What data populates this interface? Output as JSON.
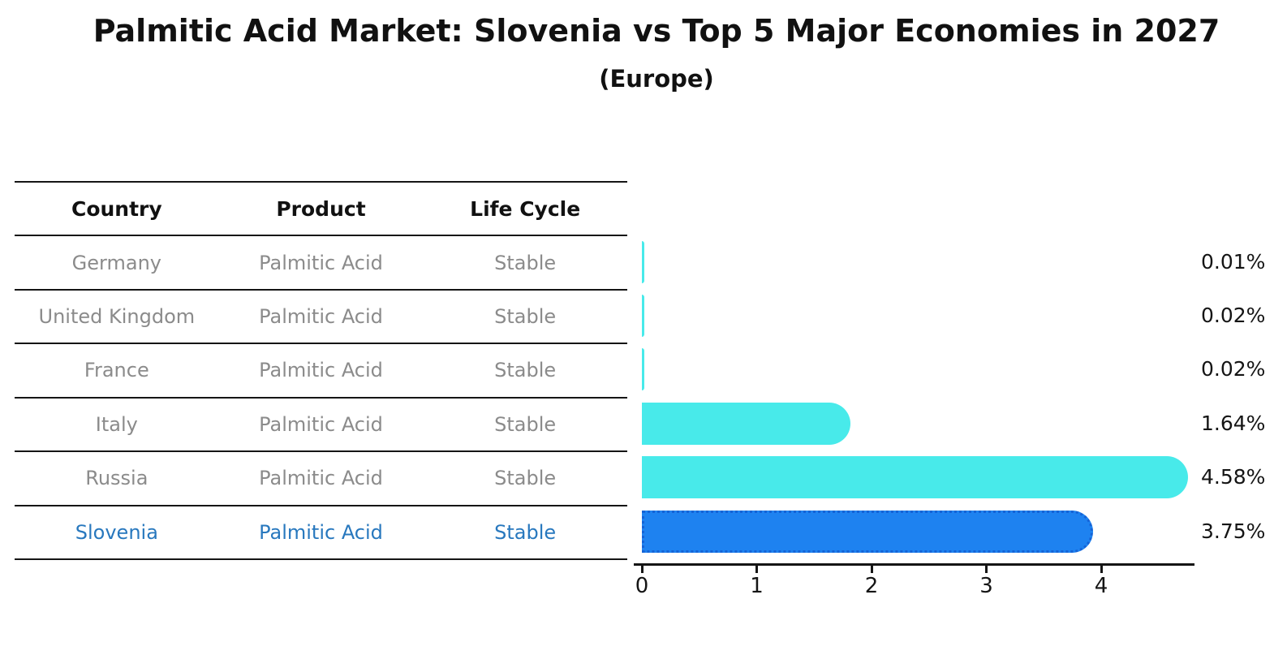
{
  "page": {
    "title": "Palmitic Acid Market: Slovenia vs Top 5 Major Economies in 2027",
    "subtitle": "(Europe)"
  },
  "table": {
    "headers": [
      "Country",
      "Product",
      "Life Cycle"
    ],
    "rows": [
      {
        "country": "Germany",
        "product": "Palmitic Acid",
        "life_cycle": "Stable",
        "highlight": false
      },
      {
        "country": "United Kingdom",
        "product": "Palmitic Acid",
        "life_cycle": "Stable",
        "highlight": false
      },
      {
        "country": "France",
        "product": "Palmitic Acid",
        "life_cycle": "Stable",
        "highlight": false
      },
      {
        "country": "Italy",
        "product": "Palmitic Acid",
        "life_cycle": "Stable",
        "highlight": false
      },
      {
        "country": "Russia",
        "product": "Palmitic Acid",
        "life_cycle": "Stable",
        "highlight": false
      },
      {
        "country": "Slovenia",
        "product": "Palmitic Acid",
        "life_cycle": "Stable",
        "highlight": true
      }
    ],
    "text_color": "#8b8b8b",
    "highlight_text_color": "#2878be",
    "rule_color": "#151515"
  },
  "chart_data": {
    "type": "bar",
    "orientation": "horizontal",
    "title": "Palmitic Acid Market: Slovenia vs Top 5 Major Economies in 2027",
    "subtitle": "(Europe)",
    "categories": [
      "Germany",
      "United Kingdom",
      "France",
      "Italy",
      "Russia",
      "Slovenia"
    ],
    "values": [
      0.01,
      0.02,
      0.02,
      1.64,
      4.58,
      3.75
    ],
    "value_labels": [
      "0.01%",
      "0.02%",
      "0.02%",
      "1.64%",
      "4.58%",
      "3.75%"
    ],
    "xlim": [
      0,
      4.83
    ],
    "xticks": [
      0,
      1,
      2,
      3,
      4
    ],
    "grid": false,
    "legend": "none",
    "bar_color": "#48EAEA",
    "highlight_bar_color": "#1E82F0",
    "highlight_bar_border_color": "#1563D6",
    "highlight_category": "Slovenia",
    "highlight_index": 5,
    "axis_color": "#151515"
  }
}
